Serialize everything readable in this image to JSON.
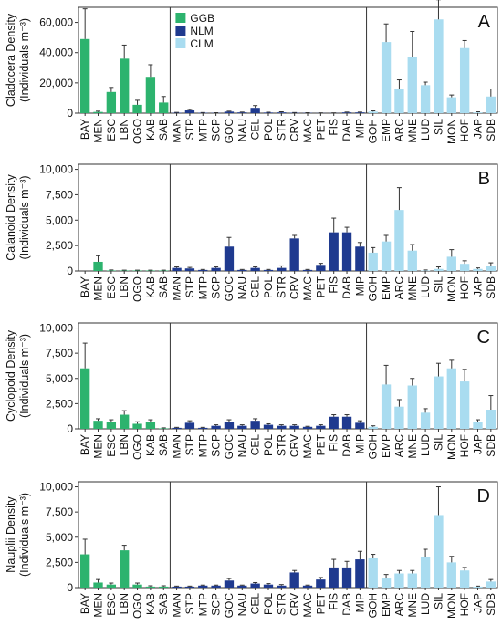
{
  "legend": {
    "placement": "top-left of middle group in panel A",
    "items": [
      {
        "label": "GGB",
        "color": "#2db36e"
      },
      {
        "label": "NLM",
        "color": "#1f3a8f"
      },
      {
        "label": "CLM",
        "color": "#a9dcf0"
      }
    ]
  },
  "colors": {
    "GGB": "#2db36e",
    "NLM": "#1f3a8f",
    "CLM": "#a9dcf0",
    "error_bar": "#333333",
    "axis": "#333333"
  },
  "chart_data": [
    {
      "type": "bar",
      "panel_letter": "A",
      "ylabel_line1": "Cladocera Density",
      "ylabel_line2": "(Individuals m⁻³)",
      "ylim": [
        0,
        70000
      ],
      "yticks": [
        0,
        20000,
        40000,
        60000
      ],
      "ytick_labels": [
        "0",
        "20,000",
        "40,000",
        "60,000"
      ],
      "groups": [
        {
          "name": "GGB",
          "categories": [
            "BAY",
            "MEN",
            "ESC",
            "LBN",
            "OGO",
            "KAB",
            "SAB"
          ],
          "values": [
            49000,
            800,
            14000,
            36000,
            5500,
            24000,
            7000
          ],
          "errors": [
            20000,
            500,
            3000,
            9000,
            3000,
            8000,
            4000
          ]
        },
        {
          "name": "NLM",
          "categories": [
            "MAN",
            "STP",
            "MTP",
            "SCP",
            "GOC",
            "NAU",
            "CEL",
            "POL",
            "STR",
            "CRV",
            "MAC",
            "PET",
            "FIS",
            "DAB",
            "MIP"
          ],
          "values": [
            300,
            1800,
            300,
            200,
            1000,
            500,
            3500,
            400,
            500,
            300,
            200,
            100,
            100,
            500,
            500
          ],
          "errors": [
            200,
            600,
            100,
            100,
            300,
            200,
            1500,
            200,
            400,
            100,
            100,
            100,
            100,
            200,
            200
          ]
        },
        {
          "name": "CLM",
          "categories": [
            "GOH",
            "EMP",
            "ARC",
            "MNE",
            "LUD",
            "SIL",
            "MON",
            "HOF",
            "JAP",
            "SDB"
          ],
          "values": [
            1000,
            47000,
            16000,
            37000,
            18500,
            62000,
            10500,
            43000,
            500,
            11000
          ],
          "errors": [
            500,
            12000,
            6000,
            17000,
            2000,
            13000,
            1500,
            5000,
            400,
            5000
          ]
        }
      ]
    },
    {
      "type": "bar",
      "panel_letter": "B",
      "ylabel_line1": "Calanoid Density",
      "ylabel_line2": "(Individuals m⁻³)",
      "ylim": [
        0,
        10500
      ],
      "yticks": [
        0,
        2500,
        5000,
        7500,
        10000
      ],
      "ytick_labels": [
        "0",
        "2,500",
        "5,000",
        "7,500",
        "10,000"
      ],
      "groups": [
        {
          "name": "GGB",
          "categories": [
            "BAY",
            "MEN",
            "ESC",
            "LBN",
            "OGO",
            "KAB",
            "SAB"
          ],
          "values": [
            0,
            900,
            50,
            50,
            50,
            50,
            50
          ],
          "errors": [
            0,
            600,
            50,
            30,
            30,
            30,
            30
          ]
        },
        {
          "name": "NLM",
          "categories": [
            "MAN",
            "STP",
            "MTP",
            "SCP",
            "GOC",
            "NAU",
            "CEL",
            "POL",
            "STR",
            "CRV",
            "MAC",
            "PET",
            "FIS",
            "DAB",
            "MIP"
          ],
          "values": [
            300,
            250,
            100,
            300,
            2400,
            100,
            300,
            100,
            300,
            3200,
            100,
            600,
            3800,
            3800,
            2400
          ],
          "errors": [
            100,
            100,
            50,
            100,
            900,
            50,
            100,
            50,
            200,
            300,
            50,
            150,
            1400,
            500,
            400
          ]
        },
        {
          "name": "CLM",
          "categories": [
            "GOH",
            "EMP",
            "ARC",
            "MNE",
            "LUD",
            "SIL",
            "MON",
            "HOF",
            "JAP",
            "SDB"
          ],
          "values": [
            1800,
            2900,
            6000,
            2000,
            50,
            200,
            1400,
            700,
            200,
            500
          ],
          "errors": [
            500,
            600,
            2200,
            600,
            50,
            200,
            700,
            300,
            100,
            300
          ]
        }
      ]
    },
    {
      "type": "bar",
      "panel_letter": "C",
      "ylabel_line1": "Cyclopoid Density",
      "ylabel_line2": "(Individuals m⁻³)",
      "ylim": [
        0,
        10500
      ],
      "yticks": [
        0,
        2500,
        5000,
        7500,
        10000
      ],
      "ytick_labels": [
        "0",
        "2,500",
        "5,000",
        "7,500",
        "10,000"
      ],
      "groups": [
        {
          "name": "GGB",
          "categories": [
            "BAY",
            "MEN",
            "ESC",
            "LBN",
            "OGO",
            "KAB",
            "SAB"
          ],
          "values": [
            6000,
            800,
            700,
            1400,
            500,
            700,
            50
          ],
          "errors": [
            2500,
            200,
            200,
            400,
            200,
            200,
            50
          ]
        },
        {
          "name": "NLM",
          "categories": [
            "MAN",
            "STP",
            "MTP",
            "SCP",
            "GOC",
            "NAU",
            "CEL",
            "POL",
            "STR",
            "CRV",
            "MAC",
            "PET",
            "FIS",
            "DAB",
            "MIP"
          ],
          "values": [
            100,
            600,
            100,
            300,
            700,
            300,
            800,
            400,
            300,
            300,
            200,
            300,
            1200,
            1200,
            600
          ],
          "errors": [
            50,
            200,
            50,
            100,
            200,
            100,
            200,
            100,
            100,
            100,
            50,
            100,
            200,
            200,
            200
          ]
        },
        {
          "name": "CLM",
          "categories": [
            "GOH",
            "EMP",
            "ARC",
            "MNE",
            "LUD",
            "SIL",
            "MON",
            "HOF",
            "JAP",
            "SDB"
          ],
          "values": [
            200,
            4400,
            2200,
            4300,
            1600,
            5200,
            6000,
            4700,
            700,
            1900
          ],
          "errors": [
            100,
            1900,
            700,
            700,
            400,
            1300,
            800,
            1200,
            200,
            1400
          ]
        }
      ]
    },
    {
      "type": "bar",
      "panel_letter": "D",
      "ylabel_line1": "Nauplii Density",
      "ylabel_line2": "(Individuals m⁻³)",
      "ylim": [
        0,
        10500
      ],
      "yticks": [
        0,
        2500,
        5000,
        7500,
        10000
      ],
      "ytick_labels": [
        "0",
        "2,500",
        "5,000",
        "7,500",
        "10,000"
      ],
      "groups": [
        {
          "name": "GGB",
          "categories": [
            "BAY",
            "MEN",
            "ESC",
            "LBN",
            "OGO",
            "KAB",
            "SAB"
          ],
          "values": [
            3300,
            500,
            300,
            3700,
            300,
            100,
            100
          ],
          "errors": [
            1500,
            300,
            150,
            500,
            150,
            80,
            80
          ]
        },
        {
          "name": "NLM",
          "categories": [
            "MAN",
            "STP",
            "MTP",
            "SCP",
            "GOC",
            "NAU",
            "CEL",
            "POL",
            "STR",
            "CRV",
            "MAC",
            "PET",
            "FIS",
            "DAB",
            "MIP"
          ],
          "values": [
            100,
            100,
            200,
            200,
            700,
            200,
            400,
            300,
            200,
            1500,
            200,
            800,
            2000,
            2000,
            2800
          ],
          "errors": [
            50,
            50,
            50,
            50,
            200,
            50,
            100,
            100,
            100,
            200,
            50,
            200,
            800,
            600,
            800
          ]
        },
        {
          "name": "CLM",
          "categories": [
            "GOH",
            "EMP",
            "ARC",
            "MNE",
            "LUD",
            "SIL",
            "MON",
            "HOF",
            "JAP",
            "SDB"
          ],
          "values": [
            2900,
            900,
            1400,
            1400,
            3000,
            7200,
            2500,
            1700,
            100,
            600
          ],
          "errors": [
            400,
            400,
            300,
            300,
            800,
            2800,
            600,
            300,
            50,
            200
          ]
        }
      ]
    }
  ]
}
